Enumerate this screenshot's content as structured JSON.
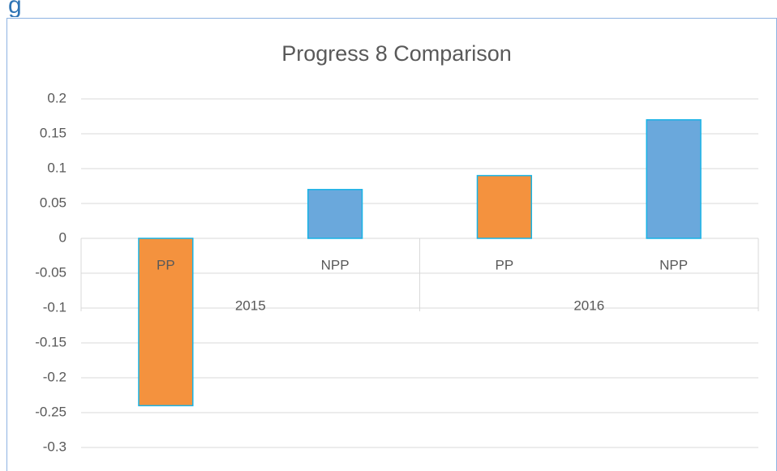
{
  "heading": "g",
  "chart_data": {
    "type": "bar",
    "title": "Progress 8 Comparison",
    "categories": [
      "PP",
      "NPP",
      "PP",
      "NPP"
    ],
    "groups": [
      {
        "label": "2015",
        "span": 2
      },
      {
        "label": "2016",
        "span": 2
      }
    ],
    "values": [
      -0.24,
      0.07,
      0.09,
      0.17
    ],
    "colors": [
      "#f4923e",
      "#6aa8dc",
      "#f4923e",
      "#6aa8dc"
    ],
    "edge_color": "#17b3e6",
    "ylim": [
      -0.3,
      0.2
    ],
    "yticks": [
      0.2,
      0.15,
      0.1,
      0.05,
      0,
      -0.05,
      -0.1,
      -0.15,
      -0.2,
      -0.25,
      -0.3
    ],
    "grid": true
  }
}
